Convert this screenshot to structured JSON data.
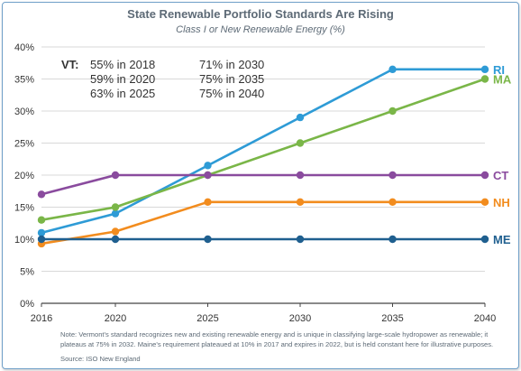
{
  "chart_data": {
    "type": "line",
    "title": "State Renewable Portfolio Standards Are Rising",
    "subtitle": "Class I or New Renewable Energy (%)",
    "x": [
      2016,
      2020,
      2025,
      2030,
      2035,
      2040
    ],
    "x_ticks": [
      "2016",
      "2020",
      "2025",
      "2030",
      "2035",
      "2040"
    ],
    "xlim": [
      2016,
      2040
    ],
    "ylim": [
      0,
      40
    ],
    "y_ticks": [
      "0%",
      "5%",
      "10%",
      "15%",
      "20%",
      "25%",
      "30%",
      "35%",
      "40%"
    ],
    "grid": true,
    "series": [
      {
        "name": "RI",
        "color": "#2e9bd6",
        "points": [
          [
            2016,
            11
          ],
          [
            2020,
            14
          ],
          [
            2025,
            21.5
          ],
          [
            2030,
            29
          ],
          [
            2035,
            36.5
          ],
          [
            2040,
            36.5
          ]
        ]
      },
      {
        "name": "MA",
        "color": "#7ab648",
        "points": [
          [
            2016,
            13
          ],
          [
            2020,
            15
          ],
          [
            2025,
            20
          ],
          [
            2030,
            25
          ],
          [
            2035,
            30
          ],
          [
            2040,
            35
          ]
        ]
      },
      {
        "name": "CT",
        "color": "#8a4b9e",
        "points": [
          [
            2016,
            17
          ],
          [
            2020,
            20
          ],
          [
            2025,
            20
          ],
          [
            2030,
            20
          ],
          [
            2035,
            20
          ],
          [
            2040,
            20
          ]
        ]
      },
      {
        "name": "NH",
        "color": "#f28c1e",
        "points": [
          [
            2016,
            9.3
          ],
          [
            2020,
            11.2
          ],
          [
            2025,
            15.8
          ],
          [
            2030,
            15.8
          ],
          [
            2035,
            15.8
          ],
          [
            2040,
            15.8
          ]
        ]
      },
      {
        "name": "ME",
        "color": "#1f5f8f",
        "points": [
          [
            2016,
            10
          ],
          [
            2020,
            10
          ],
          [
            2025,
            10
          ],
          [
            2030,
            10
          ],
          [
            2035,
            10
          ],
          [
            2040,
            10
          ]
        ]
      }
    ],
    "annotation": {
      "label": "VT:",
      "col1": [
        "55% in 2018",
        "59% in 2020",
        "63% in 2025"
      ],
      "col2": [
        "71% in 2030",
        "75% in 2035",
        "75% in 2040"
      ]
    }
  },
  "footnote": {
    "line1": "Note: Vermont's standard recognizes new and existing renewable energy and is unique in classifying large-scale hydropower as renewable; it",
    "line2": "plateaus at 75% in 2032. Maine's requirement plateaued at 10% in 2017 and expires in 2022, but is held constant here for illustrative purposes.",
    "source": "Source: ISO New England"
  }
}
